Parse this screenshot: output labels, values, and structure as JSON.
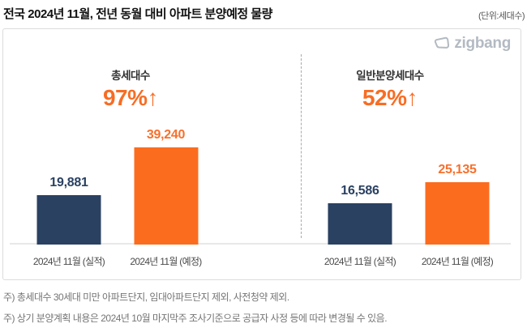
{
  "header": {
    "title": "전국 2024년 11월, 전년 동월 대비 아파트 분양예정 물량",
    "unit_note": "(단위:세대수)"
  },
  "logo": {
    "text": "zigbang"
  },
  "chart_data": {
    "type": "bar",
    "title": "전국 2024년 11월, 전년 동월 대비 아파트 분양예정 물량",
    "unit": "세대수",
    "ylim": [
      0,
      40000
    ],
    "grid": false,
    "legend": "none",
    "groups": [
      {
        "name": "총세대수",
        "change_label": "97%↑",
        "bars": [
          {
            "label": "2024년 11월 (실적)",
            "value": 19881,
            "display": "19,881",
            "series": "actual"
          },
          {
            "label": "2024년 11월 (예정)",
            "value": 39240,
            "display": "39,240",
            "series": "planned"
          }
        ]
      },
      {
        "name": "일반분양세대수",
        "change_label": "52%↑",
        "bars": [
          {
            "label": "2024년 11월 (실적)",
            "value": 16586,
            "display": "16,586",
            "series": "actual"
          },
          {
            "label": "2024년 11월 (예정)",
            "value": 25135,
            "display": "25,135",
            "series": "planned"
          }
        ]
      }
    ],
    "series_colors": {
      "actual": "#2a4162",
      "planned": "#fc6c1f"
    },
    "value_text_colors": {
      "actual": "#2a4162",
      "planned": "#f7702c"
    },
    "change_color": "#f76d24"
  },
  "notes": [
    "주) 총세대수 30세대 미만 아파트단지, 임대아파트단지 제외, 사전청약 제외.",
    "주) 상기 분양계획 내용은 2024년 10월 마지막주 조사기준으로 공급자 사정 등에 따라 변경될 수 있음."
  ]
}
